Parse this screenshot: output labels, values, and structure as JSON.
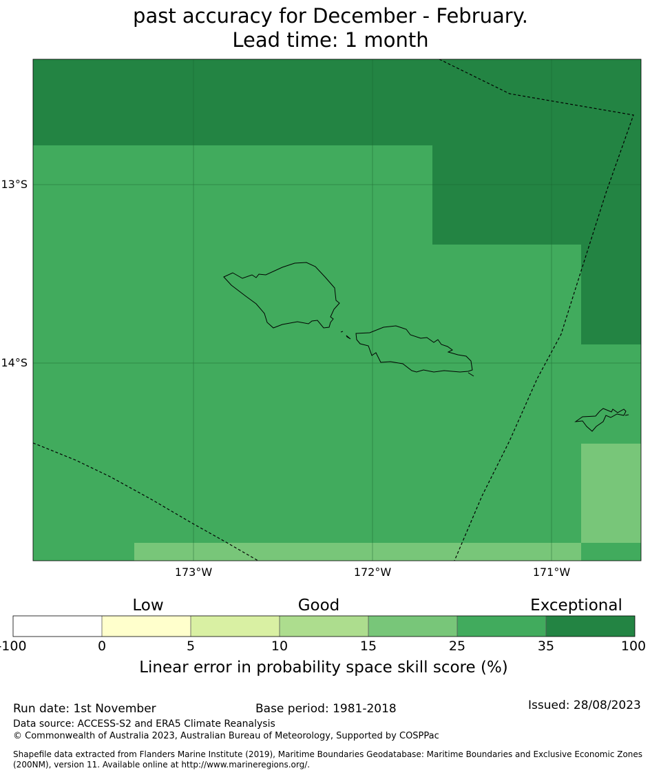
{
  "title": {
    "line1": "past accuracy for December - February.",
    "line2": "Lead time: 1 month"
  },
  "map": {
    "lat_labels": [
      "13°S",
      "14°S"
    ],
    "lon_labels": [
      "173°W",
      "172°W",
      "171°W"
    ],
    "extent": {
      "lon_min": -173.9,
      "lon_max": -170.5,
      "lat_min": -15.1,
      "lat_max": -12.3
    }
  },
  "colorbar": {
    "categories": [
      "Low",
      "Good",
      "Exceptional"
    ],
    "ticks": [
      "-100",
      "0",
      "5",
      "10",
      "15",
      "25",
      "35",
      "100"
    ],
    "colors": [
      "#ffffff",
      "#ffffcc",
      "#d9f0a3",
      "#addd8e",
      "#78c679",
      "#41ab5d",
      "#238443"
    ],
    "title": "Linear error in probability space skill score (%)"
  },
  "footer": {
    "run_date": "Run date: 1st November",
    "base_period": "Base period: 1981-2018",
    "issued": "Issued: 28/08/2023",
    "data_source": "Data source: ACCESS-S2 and ERA5 Climate Reanalysis",
    "copyright": "© Commonwealth of Australia 2023, Australian Bureau of Meteorology, Supported by COSPPac",
    "shapefile_line1": "Shapefile data extracted from Flanders Marine Institute (2019), Maritime Boundaries Geodatabase: Maritime Boundaries and Exclusive Economic Zones",
    "shapefile_line2": "(200NM), version 11. Available online at http://www.marineregions.org/."
  },
  "colors": {
    "skill_25_35": "#41ab5d",
    "skill_35_100": "#238443",
    "skill_15_25": "#78c679"
  }
}
